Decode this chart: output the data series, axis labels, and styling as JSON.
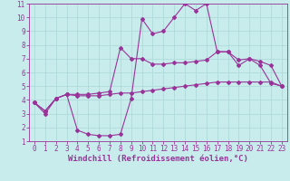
{
  "xlabel": "Windchill (Refroidissement éolien,°C)",
  "background_color": "#c8ecec",
  "line_color": "#993399",
  "grid_color": "#b0dada",
  "xlim": [
    -0.5,
    23.5
  ],
  "ylim": [
    1,
    11
  ],
  "xticks": [
    0,
    1,
    2,
    3,
    4,
    5,
    6,
    7,
    8,
    9,
    10,
    11,
    12,
    13,
    14,
    15,
    16,
    17,
    18,
    19,
    20,
    21,
    22,
    23
  ],
  "yticks": [
    1,
    2,
    3,
    4,
    5,
    6,
    7,
    8,
    9,
    10,
    11
  ],
  "curve1_x": [
    0,
    1,
    2,
    3,
    4,
    5,
    6,
    7,
    8,
    9,
    10,
    11,
    12,
    13,
    14,
    15,
    16,
    17,
    18,
    19,
    20,
    21,
    22,
    23
  ],
  "curve1_y": [
    3.8,
    3.0,
    4.1,
    4.4,
    1.8,
    1.5,
    1.4,
    1.4,
    1.5,
    4.1,
    9.9,
    8.8,
    9.0,
    10.0,
    11.0,
    10.5,
    11.0,
    7.5,
    7.5,
    6.5,
    7.0,
    6.5,
    5.2,
    5.0
  ],
  "curve2_x": [
    0,
    1,
    2,
    3,
    4,
    5,
    6,
    7,
    8,
    9,
    10,
    11,
    12,
    13,
    14,
    15,
    16,
    17,
    18,
    19,
    20,
    21,
    22,
    23
  ],
  "curve2_y": [
    3.8,
    3.2,
    4.1,
    4.4,
    4.4,
    4.4,
    4.5,
    4.6,
    7.8,
    7.0,
    7.0,
    6.6,
    6.6,
    6.7,
    6.7,
    6.8,
    6.9,
    7.5,
    7.5,
    6.9,
    7.0,
    6.8,
    6.5,
    5.0
  ],
  "curve3_x": [
    0,
    1,
    2,
    3,
    4,
    5,
    6,
    7,
    8,
    9,
    10,
    11,
    12,
    13,
    14,
    15,
    16,
    17,
    18,
    19,
    20,
    21,
    22,
    23
  ],
  "curve3_y": [
    3.8,
    3.2,
    4.1,
    4.4,
    4.3,
    4.3,
    4.3,
    4.4,
    4.5,
    4.5,
    4.6,
    4.7,
    4.8,
    4.9,
    5.0,
    5.1,
    5.2,
    5.3,
    5.3,
    5.3,
    5.3,
    5.3,
    5.3,
    5.0
  ],
  "marker_size": 2.0,
  "linewidth": 0.8,
  "xlabel_fontsize": 6.5,
  "tick_fontsize": 5.5
}
